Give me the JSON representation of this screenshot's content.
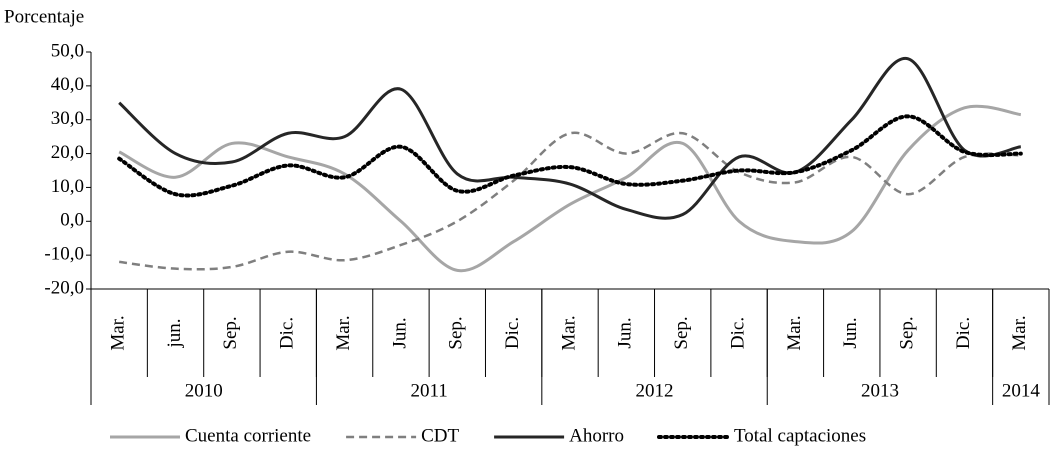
{
  "chart_data": {
    "type": "line",
    "ylabel": "Porcentaje",
    "categories": [
      "Mar.",
      "jun.",
      "Sep.",
      "Dic.",
      "Mar.",
      "Jun.",
      "Sep.",
      "Dic.",
      "Mar.",
      "Jun.",
      "Sep.",
      "Dic.",
      "Mar.",
      "Jun.",
      "Sep.",
      "Dic.",
      "Mar."
    ],
    "year_groups": [
      "2010",
      "2011",
      "2012",
      "2013",
      "2014"
    ],
    "group_sizes": [
      4,
      4,
      4,
      4,
      1
    ],
    "ylim": [
      -20,
      50
    ],
    "yticks": [
      {
        "value": -20,
        "label": "-20,0"
      },
      {
        "value": -10,
        "label": "-10,0"
      },
      {
        "value": 0,
        "label": "0,0"
      },
      {
        "value": 10,
        "label": "10,0"
      },
      {
        "value": 20,
        "label": "20,0"
      },
      {
        "value": 30,
        "label": "30,0"
      },
      {
        "value": 40,
        "label": "40,0"
      },
      {
        "value": 50,
        "label": "50,0"
      }
    ],
    "series": [
      {
        "name": "Cuenta corriente",
        "color": "#a6a6a6",
        "dash": "none",
        "values": [
          20.5,
          13,
          23,
          19,
          14,
          0,
          -14.5,
          -6,
          5,
          13,
          23,
          0,
          -6,
          -3,
          21,
          33.5,
          31.5
        ]
      },
      {
        "name": "CDT",
        "color": "#7f7f7f",
        "dash": "dashed",
        "values": [
          -12,
          -14,
          -13.5,
          -9,
          -11.5,
          -7,
          0,
          12,
          26,
          20,
          26,
          14.5,
          11.5,
          19,
          8,
          19,
          19.5
        ]
      },
      {
        "name": "Ahorro",
        "color": "#262626",
        "dash": "none",
        "values": [
          35,
          20,
          17.5,
          26,
          25,
          39,
          14,
          13,
          11,
          3.5,
          2,
          19,
          14.5,
          30,
          48,
          21,
          22
        ]
      },
      {
        "name": "Total captaciones",
        "color": "#000000",
        "dash": "dotted",
        "values": [
          18.5,
          8,
          10.5,
          16.5,
          13,
          22,
          9,
          13.5,
          16,
          11,
          12,
          15,
          14.5,
          21,
          31,
          20.5,
          20
        ]
      }
    ]
  }
}
